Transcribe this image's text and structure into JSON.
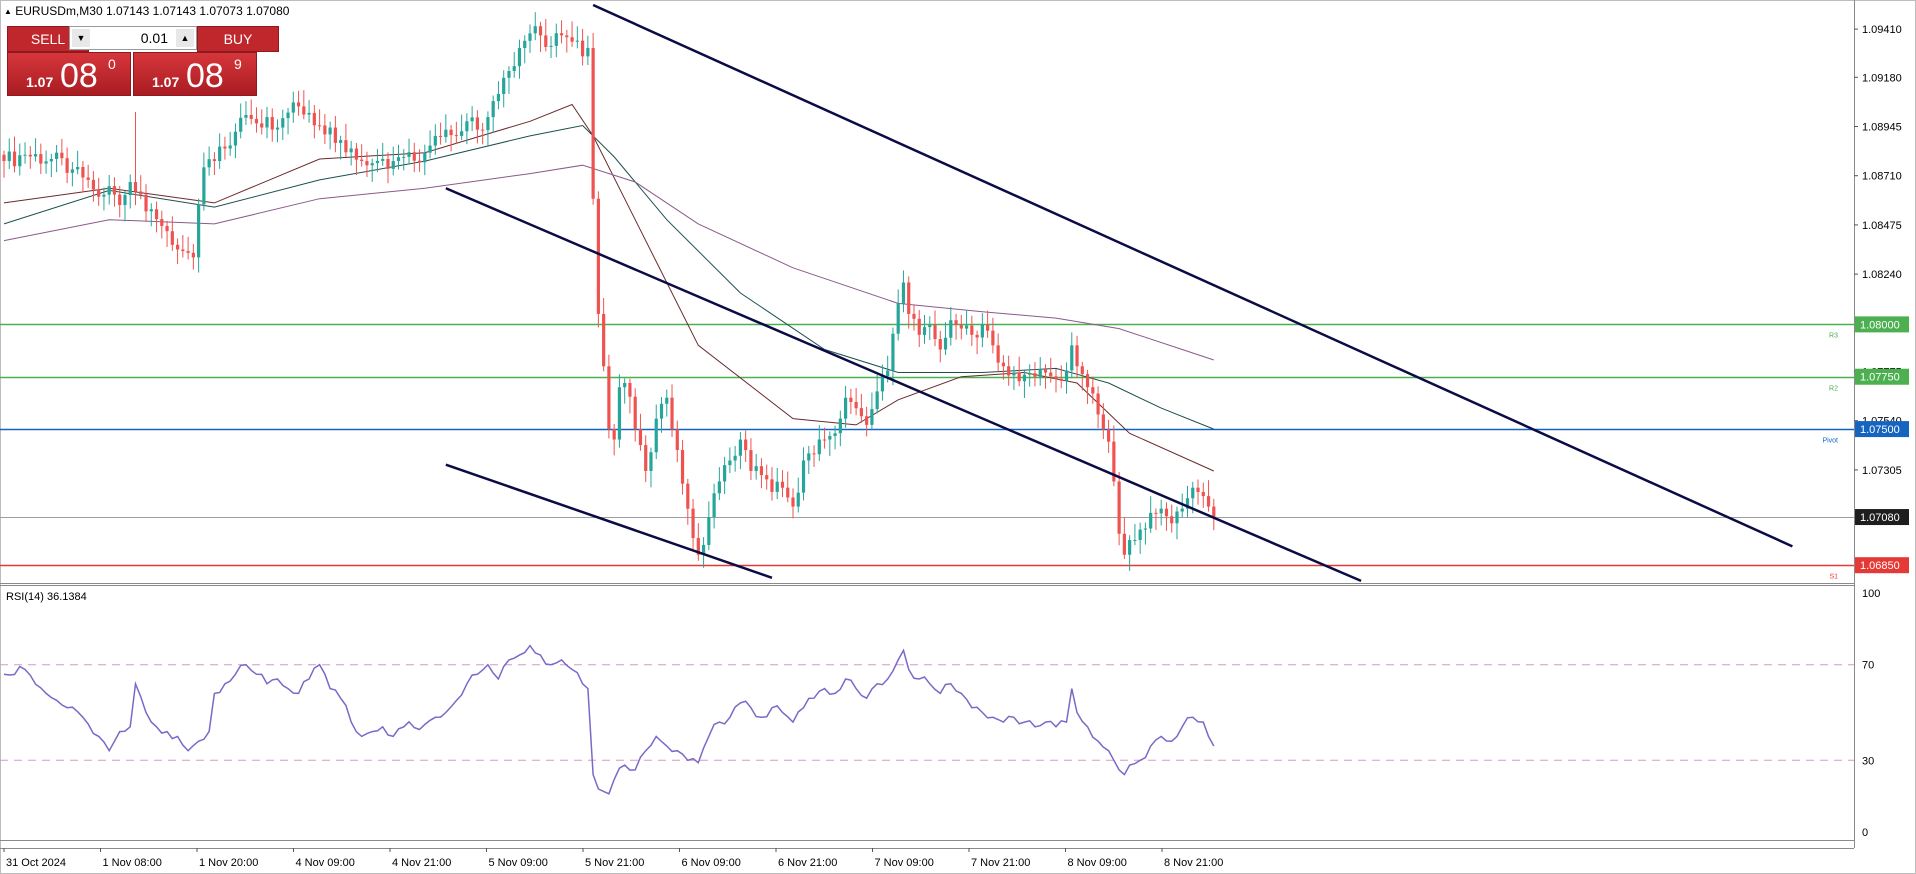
{
  "header": {
    "symbol_line": "EURUSDm,M30  1.07143 1.07143 1.07073 1.07080",
    "triangle_icon": "triangle-up-icon"
  },
  "trade_panel": {
    "sell_label": "SELL",
    "buy_label": "BUY",
    "lot": "0.01",
    "sell_price_small": "1.07",
    "sell_price_big": "08",
    "sell_price_sup": "0",
    "buy_price_small": "1.07",
    "buy_price_big": "08",
    "buy_price_sup": "9"
  },
  "colors": {
    "bull": "#26a69a",
    "bear": "#ef5350",
    "channel": "#0b0b45",
    "ma_fast": "#6b2a2a",
    "ma_mid": "#1f4f4f",
    "ma_slow": "#8b5a8b",
    "r3": "#4caf50",
    "r2": "#4caf50",
    "pivot": "#1565c0",
    "s1": "#e53935",
    "rsi": "#7b68c8"
  },
  "chart_data": {
    "type": "candlestick",
    "symbol": "EURUSDm",
    "timeframe": "M30",
    "ohlc_header": {
      "open": 1.07143,
      "high": 1.07143,
      "low": 1.07073,
      "close": 1.0708
    },
    "price_axis_ticks": [
      "1.09410",
      "1.09180",
      "1.08945",
      "1.08710",
      "1.08475",
      "1.08240",
      "1.07775",
      "1.07540",
      "1.07305"
    ],
    "ylim": [
      1.06765,
      1.0953
    ],
    "x_tick_labels": [
      "31 Oct 2024",
      "1 Nov 08:00",
      "1 Nov 20:00",
      "4 Nov 09:00",
      "4 Nov 21:00",
      "5 Nov 09:00",
      "5 Nov 21:00",
      "6 Nov 09:00",
      "6 Nov 21:00",
      "7 Nov 09:00",
      "7 Nov 21:00",
      "8 Nov 09:00",
      "8 Nov 21:00"
    ],
    "levels": [
      {
        "label": "1.08000",
        "value": 1.08,
        "tag": "R3",
        "color_key": "r3"
      },
      {
        "label": "1.07750",
        "value": 1.0775,
        "tag": "R2",
        "color_key": "r2"
      },
      {
        "label": "1.07500",
        "value": 1.075,
        "tag": "Pivot",
        "color_key": "pivot"
      },
      {
        "label": "1.06850",
        "value": 1.0685,
        "tag": "S1",
        "color_key": "s1"
      }
    ],
    "current_price": {
      "label": "1.07080",
      "value": 1.0708
    },
    "close_path": [
      [
        0,
        1.0878
      ],
      [
        4,
        1.0881
      ],
      [
        9,
        1.0879
      ],
      [
        13,
        1.0874
      ],
      [
        16,
        1.0869
      ],
      [
        18,
        1.0861
      ],
      [
        20,
        1.0866
      ],
      [
        22,
        1.0857
      ],
      [
        24,
        1.0868
      ],
      [
        26,
        1.0862
      ],
      [
        28,
        1.0855
      ],
      [
        30,
        1.0847
      ],
      [
        32,
        1.0838
      ],
      [
        34,
        1.0835
      ],
      [
        36,
        1.0832
      ],
      [
        38,
        1.0875
      ],
      [
        40,
        1.0878
      ],
      [
        42,
        1.0884
      ],
      [
        44,
        1.0892
      ],
      [
        46,
        1.09
      ],
      [
        48,
        1.0896
      ],
      [
        50,
        1.0899
      ],
      [
        52,
        1.0894
      ],
      [
        55,
        1.0906
      ],
      [
        58,
        1.0901
      ],
      [
        60,
        1.0895
      ],
      [
        62,
        1.0894
      ],
      [
        64,
        1.0888
      ],
      [
        66,
        1.0884
      ],
      [
        68,
        1.0878
      ],
      [
        70,
        1.0877
      ],
      [
        72,
        1.0879
      ],
      [
        74,
        1.0878
      ],
      [
        76,
        1.088
      ],
      [
        80,
        1.0882
      ],
      [
        82,
        1.089
      ],
      [
        84,
        1.0893
      ],
      [
        86,
        1.089
      ],
      [
        88,
        1.0897
      ],
      [
        90,
        1.0893
      ],
      [
        92,
        1.0899
      ],
      [
        94,
        1.091
      ],
      [
        96,
        1.0921
      ],
      [
        98,
        1.0932
      ],
      [
        100,
        1.0939
      ],
      [
        102,
        1.0938
      ],
      [
        104,
        1.0933
      ],
      [
        106,
        1.0938
      ],
      [
        108,
        1.0935
      ],
      [
        110,
        1.0928
      ],
      [
        111,
        1.0932
      ],
      [
        112,
        1.086
      ],
      [
        113,
        1.0805
      ],
      [
        114,
        1.078
      ],
      [
        115,
        1.075
      ],
      [
        116,
        1.0745
      ],
      [
        117,
        1.077
      ],
      [
        118,
        1.0772
      ],
      [
        120,
        1.075
      ],
      [
        122,
        1.073
      ],
      [
        124,
        1.0755
      ],
      [
        126,
        1.0765
      ],
      [
        128,
        1.074
      ],
      [
        130,
        1.0712
      ],
      [
        131,
        1.0698
      ],
      [
        132,
        1.069
      ],
      [
        134,
        1.0708
      ],
      [
        136,
        1.0725
      ],
      [
        138,
        1.0735
      ],
      [
        140,
        1.0745
      ],
      [
        142,
        1.073
      ],
      [
        144,
        1.0728
      ],
      [
        146,
        1.072
      ],
      [
        148,
        1.0722
      ],
      [
        150,
        1.0713
      ],
      [
        152,
        1.0735
      ],
      [
        154,
        1.0738
      ],
      [
        156,
        1.0745
      ],
      [
        158,
        1.0748
      ],
      [
        160,
        1.0765
      ],
      [
        162,
        1.076
      ],
      [
        164,
        1.0752
      ],
      [
        166,
        1.0768
      ],
      [
        168,
        1.0778
      ],
      [
        170,
        1.081
      ],
      [
        171,
        1.082
      ],
      [
        172,
        1.0805
      ],
      [
        174,
        1.0795
      ],
      [
        176,
        1.08
      ],
      [
        178,
        1.0788
      ],
      [
        180,
        1.0802
      ],
      [
        182,
        1.0798
      ],
      [
        184,
        1.0795
      ],
      [
        186,
        1.08
      ],
      [
        188,
        1.079
      ],
      [
        190,
        1.078
      ],
      [
        192,
        1.0777
      ],
      [
        194,
        1.0776
      ],
      [
        196,
        1.0775
      ],
      [
        198,
        1.0777
      ],
      [
        200,
        1.0774
      ],
      [
        202,
        1.0778
      ],
      [
        203,
        1.079
      ],
      [
        204,
        1.078
      ],
      [
        206,
        1.077
      ],
      [
        208,
        1.0757
      ],
      [
        210,
        1.0744
      ],
      [
        211,
        1.0725
      ],
      [
        212,
        1.07
      ],
      [
        213,
        1.069
      ],
      [
        214,
        1.0697
      ],
      [
        216,
        1.0702
      ],
      [
        218,
        1.071
      ],
      [
        220,
        1.0712
      ],
      [
        222,
        1.0705
      ],
      [
        224,
        1.0712
      ],
      [
        226,
        1.0722
      ],
      [
        228,
        1.0718
      ],
      [
        229,
        1.0713
      ],
      [
        230,
        1.0708
      ]
    ],
    "rsi": {
      "label": "RSI(14) 36.1384",
      "period": 14,
      "value": 36.1384,
      "levels": [
        70,
        30
      ],
      "ylim": [
        0,
        100
      ],
      "ticks": [
        "100",
        "70",
        "30",
        "0"
      ],
      "path": [
        [
          0,
          66
        ],
        [
          4,
          68
        ],
        [
          8,
          58
        ],
        [
          12,
          52
        ],
        [
          15,
          48
        ],
        [
          18,
          40
        ],
        [
          20,
          34
        ],
        [
          22,
          42
        ],
        [
          24,
          44
        ],
        [
          25,
          62
        ],
        [
          27,
          50
        ],
        [
          29,
          44
        ],
        [
          31,
          42
        ],
        [
          33,
          40
        ],
        [
          35,
          34
        ],
        [
          37,
          38
        ],
        [
          39,
          42
        ],
        [
          40,
          58
        ],
        [
          42,
          62
        ],
        [
          44,
          66
        ],
        [
          46,
          70
        ],
        [
          48,
          66
        ],
        [
          50,
          62
        ],
        [
          52,
          64
        ],
        [
          54,
          60
        ],
        [
          56,
          58
        ],
        [
          58,
          64
        ],
        [
          60,
          70
        ],
        [
          62,
          60
        ],
        [
          64,
          56
        ],
        [
          66,
          46
        ],
        [
          68,
          40
        ],
        [
          70,
          42
        ],
        [
          72,
          44
        ],
        [
          74,
          40
        ],
        [
          76,
          44
        ],
        [
          80,
          45
        ],
        [
          82,
          48
        ],
        [
          84,
          50
        ],
        [
          86,
          55
        ],
        [
          88,
          62
        ],
        [
          90,
          66
        ],
        [
          92,
          70
        ],
        [
          94,
          64
        ],
        [
          96,
          72
        ],
        [
          98,
          74
        ],
        [
          100,
          78
        ],
        [
          102,
          74
        ],
        [
          104,
          70
        ],
        [
          106,
          72
        ],
        [
          108,
          68
        ],
        [
          110,
          62
        ],
        [
          111,
          60
        ],
        [
          112,
          24
        ],
        [
          113,
          18
        ],
        [
          114,
          17
        ],
        [
          115,
          16
        ],
        [
          116,
          22
        ],
        [
          118,
          28
        ],
        [
          120,
          26
        ],
        [
          122,
          34
        ],
        [
          124,
          40
        ],
        [
          126,
          36
        ],
        [
          128,
          34
        ],
        [
          130,
          30
        ],
        [
          132,
          29
        ],
        [
          134,
          40
        ],
        [
          136,
          46
        ],
        [
          138,
          48
        ],
        [
          140,
          54
        ],
        [
          142,
          52
        ],
        [
          144,
          48
        ],
        [
          146,
          52
        ],
        [
          148,
          50
        ],
        [
          150,
          46
        ],
        [
          152,
          52
        ],
        [
          154,
          56
        ],
        [
          156,
          60
        ],
        [
          158,
          58
        ],
        [
          160,
          64
        ],
        [
          162,
          60
        ],
        [
          164,
          56
        ],
        [
          166,
          62
        ],
        [
          168,
          64
        ],
        [
          170,
          72
        ],
        [
          171,
          76
        ],
        [
          172,
          68
        ],
        [
          174,
          64
        ],
        [
          176,
          62
        ],
        [
          178,
          58
        ],
        [
          180,
          62
        ],
        [
          182,
          58
        ],
        [
          184,
          52
        ],
        [
          186,
          50
        ],
        [
          188,
          48
        ],
        [
          190,
          46
        ],
        [
          192,
          48
        ],
        [
          194,
          46
        ],
        [
          196,
          44
        ],
        [
          198,
          46
        ],
        [
          200,
          44
        ],
        [
          202,
          46
        ],
        [
          203,
          60
        ],
        [
          204,
          50
        ],
        [
          206,
          44
        ],
        [
          208,
          38
        ],
        [
          210,
          34
        ],
        [
          211,
          30
        ],
        [
          212,
          26
        ],
        [
          213,
          24
        ],
        [
          214,
          28
        ],
        [
          216,
          30
        ],
        [
          218,
          36
        ],
        [
          220,
          40
        ],
        [
          222,
          38
        ],
        [
          224,
          44
        ],
        [
          226,
          48
        ],
        [
          228,
          46
        ],
        [
          229,
          40
        ],
        [
          230,
          36
        ]
      ]
    },
    "moving_averages": [
      {
        "color_key": "ma_fast",
        "path": [
          [
            0,
            1.0858
          ],
          [
            20,
            1.0865
          ],
          [
            40,
            1.0858
          ],
          [
            60,
            1.0879
          ],
          [
            80,
            1.0882
          ],
          [
            100,
            1.0897
          ],
          [
            108,
            1.0905
          ],
          [
            112,
            1.089
          ],
          [
            120,
            1.085
          ],
          [
            132,
            1.079
          ],
          [
            150,
            1.0755
          ],
          [
            162,
            1.0752
          ],
          [
            170,
            1.0764
          ],
          [
            182,
            1.0775
          ],
          [
            194,
            1.0777
          ],
          [
            204,
            1.0772
          ],
          [
            214,
            1.0748
          ],
          [
            230,
            1.073
          ]
        ]
      },
      {
        "color_key": "ma_mid",
        "path": [
          [
            0,
            1.0848
          ],
          [
            20,
            1.0864
          ],
          [
            40,
            1.0856
          ],
          [
            60,
            1.0869
          ],
          [
            80,
            1.0878
          ],
          [
            100,
            1.089
          ],
          [
            110,
            1.0895
          ],
          [
            116,
            1.088
          ],
          [
            126,
            1.085
          ],
          [
            140,
            1.0815
          ],
          [
            156,
            1.0788
          ],
          [
            170,
            1.0777
          ],
          [
            186,
            1.0777
          ],
          [
            200,
            1.0779
          ],
          [
            210,
            1.0772
          ],
          [
            220,
            1.076
          ],
          [
            230,
            1.075
          ]
        ]
      },
      {
        "color_key": "ma_slow",
        "path": [
          [
            0,
            1.084
          ],
          [
            20,
            1.085
          ],
          [
            40,
            1.0848
          ],
          [
            60,
            1.086
          ],
          [
            80,
            1.0865
          ],
          [
            100,
            1.0872
          ],
          [
            110,
            1.0876
          ],
          [
            120,
            1.0868
          ],
          [
            132,
            1.0848
          ],
          [
            150,
            1.0827
          ],
          [
            170,
            1.081
          ],
          [
            186,
            1.0806
          ],
          [
            200,
            1.0803
          ],
          [
            212,
            1.0798
          ],
          [
            224,
            1.0788
          ],
          [
            230,
            1.0783
          ]
        ]
      }
    ],
    "channel_lines": [
      {
        "from": [
          112,
          1.09525
        ],
        "to": [
          340,
          1.0694
        ]
      },
      {
        "from": [
          84,
          1.0865
        ],
        "to": [
          258,
          1.06775
        ]
      },
      {
        "from": [
          84,
          1.0733
        ],
        "to": [
          146,
          1.0679
        ]
      }
    ],
    "grid": false
  }
}
